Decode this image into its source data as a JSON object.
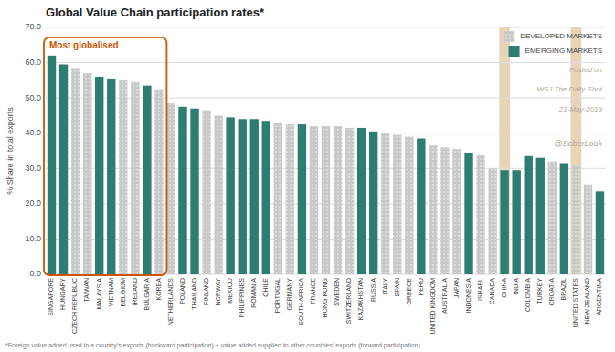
{
  "chart_data": {
    "type": "bar",
    "title": "Global Value Chain participation rates*",
    "ylabel": "% Share in total exports",
    "footnote": "*Foreign value added used in a country's exports (backward participation) + value added supplied to other countries' exports (forward participation)",
    "annotation": "Most globalised",
    "annotation_range": [
      "SINGAPORE",
      "KOREA"
    ],
    "annotation_color": "#cc5500",
    "highlight": [
      "CHINA",
      "UNITED STATES"
    ],
    "highlight_color": "#e8d5b8",
    "watermarks": [
      "Posted on",
      "WSJ The Daily Shot",
      "21-May-2019",
      "@SoberLook"
    ],
    "categories": [
      "SINGAPORE",
      "HUNGARY",
      "CZECH REPUBLIC",
      "TAIWAN",
      "MALAYSIA",
      "VIETNAM",
      "BELGIUM",
      "IRELAND",
      "BULGARIA",
      "KOREA",
      "NETHERLANDS",
      "POLAND",
      "THAILAND",
      "FINLAND",
      "NORWAY",
      "MEXICO",
      "PHILIPPINES",
      "ROMANIA",
      "CHILE",
      "PORTUGAL",
      "GERMANY",
      "SOUTH AFRICA",
      "FRANCE",
      "HONG KONG",
      "SWEDEN",
      "SWITZERLAND",
      "KAZAKHSTAN",
      "RUSSIA",
      "ITALY",
      "SPAIN",
      "GREECE",
      "PERU",
      "UNITED KINGDOM",
      "AUSTRALIA",
      "JAPAN",
      "INDONESIA",
      "ISRAEL",
      "CANADA",
      "CHINA",
      "INDIA",
      "COLOMBIA",
      "TURKEY",
      "CROATIA",
      "BRAZIL",
      "UNITED STATES",
      "NEW ZEALAND",
      "ARGENTINA"
    ],
    "series": [
      {
        "name": "DEVELOPED MARKETS",
        "color": "#c8c8c8",
        "values": [
          null,
          null,
          58.5,
          57.0,
          null,
          null,
          55.0,
          54.5,
          null,
          52.5,
          48.5,
          null,
          null,
          46.5,
          45.0,
          null,
          null,
          null,
          null,
          43.0,
          42.5,
          null,
          42.0,
          42.0,
          42.0,
          41.5,
          null,
          null,
          40.0,
          39.5,
          39.0,
          null,
          36.5,
          36.0,
          35.5,
          null,
          34.0,
          30.0,
          null,
          null,
          null,
          null,
          32.0,
          null,
          31.0,
          25.5,
          null
        ]
      },
      {
        "name": "EMERGING MARKETS",
        "color": "#2e7d72",
        "values": [
          62.0,
          59.5,
          null,
          null,
          56.0,
          55.5,
          null,
          null,
          53.5,
          null,
          null,
          47.5,
          47.0,
          null,
          null,
          44.5,
          44.0,
          44.0,
          43.5,
          null,
          null,
          42.5,
          null,
          null,
          null,
          null,
          41.5,
          40.5,
          null,
          null,
          null,
          38.5,
          null,
          null,
          null,
          34.5,
          null,
          null,
          29.5,
          29.5,
          33.5,
          33.0,
          null,
          31.5,
          null,
          null,
          23.5
        ]
      }
    ],
    "stacked": true,
    "legend": "upper right",
    "grid": true,
    "ylim": [
      0,
      70
    ],
    "yticks": [
      {
        "value": 0,
        "label": "0.0"
      },
      {
        "value": 10,
        "label": "10.0"
      },
      {
        "value": 20,
        "label": "20.0"
      },
      {
        "value": 30,
        "label": "30.0"
      },
      {
        "value": 40,
        "label": "40.0"
      },
      {
        "value": 50,
        "label": "50.0"
      },
      {
        "value": 60,
        "label": "60.0"
      },
      {
        "value": 70,
        "label": "70.0"
      }
    ]
  }
}
